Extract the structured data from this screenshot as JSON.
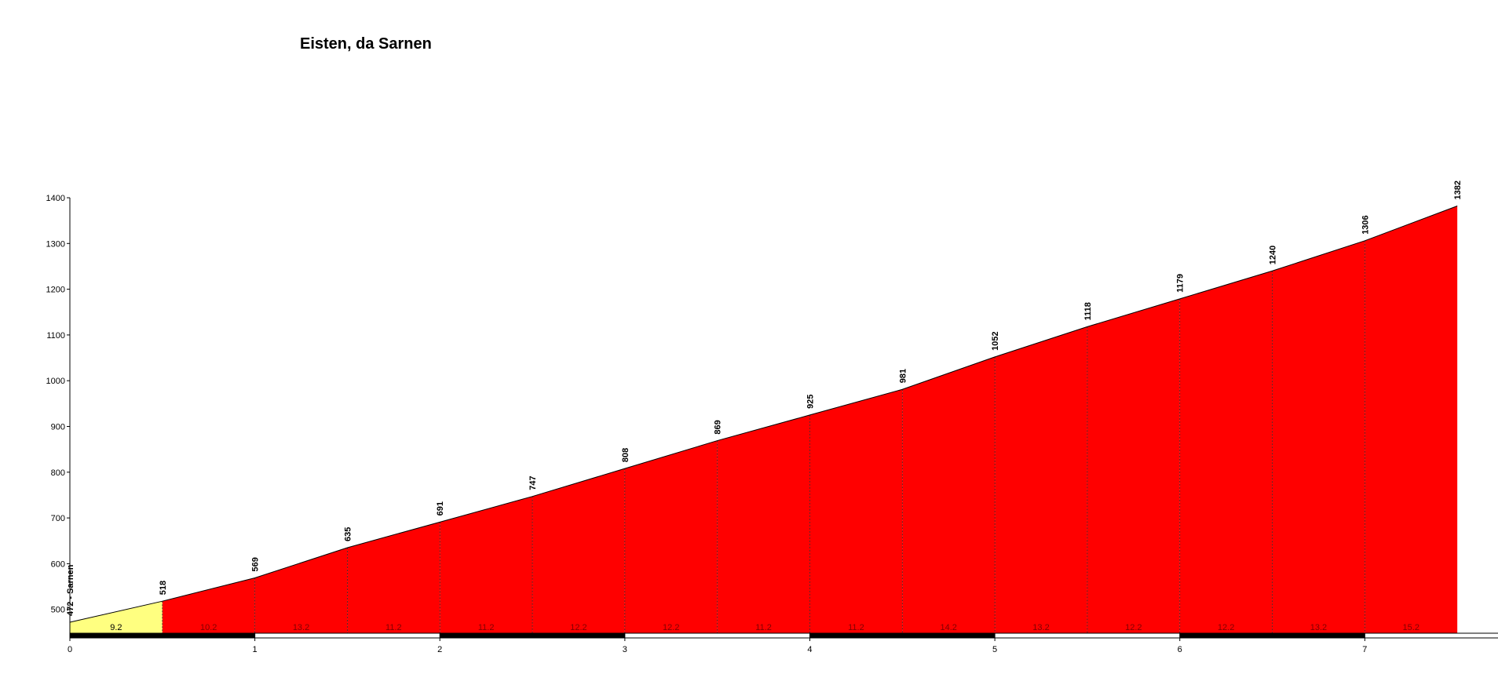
{
  "chart_data": {
    "type": "area",
    "title": "Eisten, da Sarnen",
    "x": [
      0,
      0.5,
      1,
      1.5,
      2,
      2.5,
      3,
      3.5,
      4,
      4.5,
      5,
      5.5,
      6,
      6.5,
      7,
      7.5
    ],
    "series": [
      {
        "values": [
          472,
          518,
          569,
          635,
          691,
          747,
          808,
          869,
          925,
          981,
          1052,
          1118,
          1179,
          1240,
          1306,
          1382
        ],
        "value_labels": [
          "472 - Sarnen",
          "518",
          "569",
          "635",
          "691",
          "747",
          "808",
          "869",
          "925",
          "981",
          "1052",
          "1118",
          "1179",
          "1240",
          "1306",
          "1382"
        ]
      }
    ],
    "gradients": [
      9.2,
      10.2,
      13.2,
      11.2,
      11.2,
      12.2,
      12.2,
      11.2,
      11.2,
      14.2,
      13.2,
      12.2,
      12.2,
      13.2,
      15.2
    ],
    "segment_colors": [
      "#ffff80",
      "#ff0000",
      "#ff0000",
      "#ff0000",
      "#ff0000",
      "#ff0000",
      "#ff0000",
      "#ff0000",
      "#ff0000",
      "#ff0000",
      "#ff0000",
      "#ff0000",
      "#ff0000",
      "#ff0000",
      "#ff0000"
    ],
    "xlim": [
      0,
      7.72
    ],
    "xticks": [
      0,
      1,
      2,
      3,
      4,
      5,
      6,
      7
    ],
    "ylim": [
      448,
      1400
    ],
    "yticks": [
      500,
      600,
      700,
      800,
      900,
      1000,
      1100,
      1200,
      1300,
      1400
    ]
  }
}
